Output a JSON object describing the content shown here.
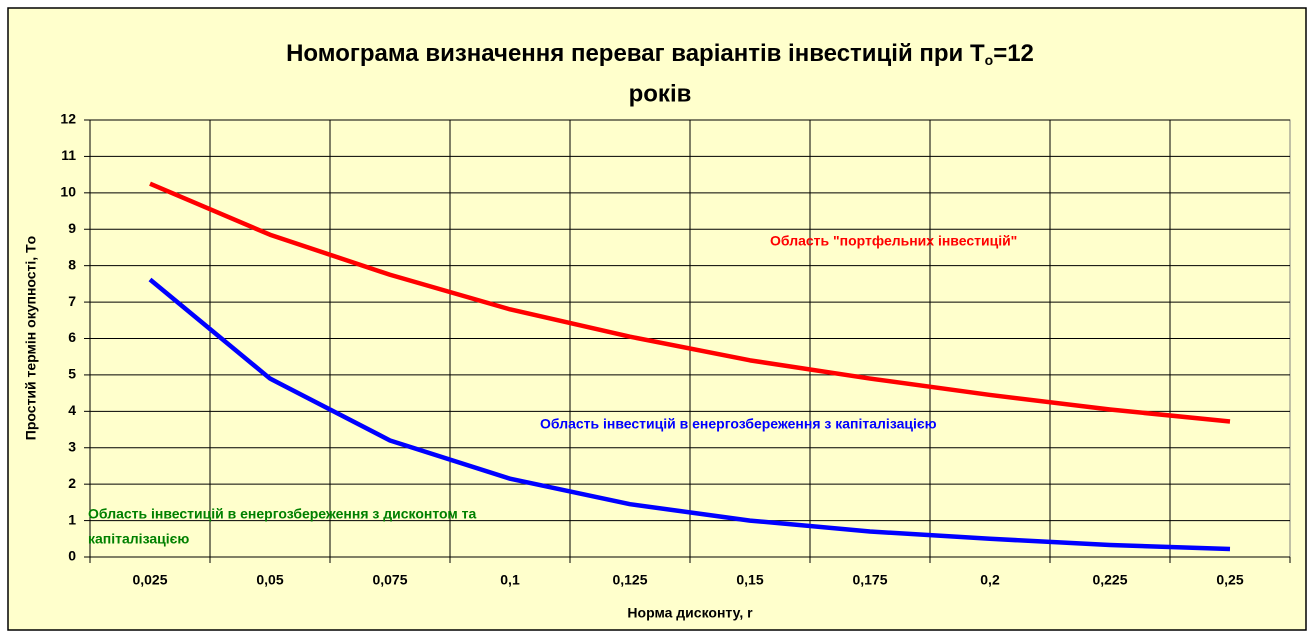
{
  "chart_data": {
    "type": "line",
    "title": {
      "line1": "Номограма визначення переваг варіантів інвестицій при Т",
      "subscript": "о",
      "line1_end": "=12",
      "line2": "років"
    },
    "y_label": "Простий  термін окупності, Tо",
    "x_label": "Норма дисконту,  r",
    "categories": [
      "0,025",
      "0,05",
      "0,075",
      "0,1",
      "0,125",
      "0,15",
      "0,175",
      "0,2",
      "0,225",
      "0,25"
    ],
    "series": [
      {
        "color": "#ff0000",
        "values": [
          10.25,
          8.85,
          7.75,
          6.8,
          6.05,
          5.4,
          4.9,
          4.45,
          4.05,
          3.72
        ]
      },
      {
        "color": "#0000ff",
        "values": [
          7.62,
          4.9,
          3.2,
          2.15,
          1.45,
          1.0,
          0.7,
          0.5,
          0.33,
          0.22
        ]
      }
    ],
    "ylim": [
      0,
      12
    ],
    "yticks": [
      0,
      1,
      2,
      3,
      4,
      5,
      6,
      7,
      8,
      9,
      10,
      11,
      12
    ],
    "grid": true,
    "annotations": [
      {
        "lines": [
          "Область \"портфельних інвестицій\""
        ],
        "color": "#ff0000"
      },
      {
        "lines": [
          "Область  інвестицій в енергозбереження з капіталізацією"
        ],
        "color": "#0000ff"
      },
      {
        "lines": [
          "Область інвестицій в енергозбереження з дисконтом та",
          "капіталізацією"
        ],
        "color": "#008000"
      }
    ]
  }
}
